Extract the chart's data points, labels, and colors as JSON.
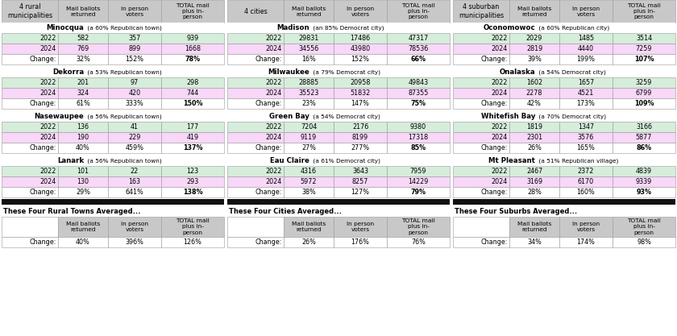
{
  "sections": [
    {
      "header": "4 rural\nmunicipalities",
      "summary_label": "These Four Rural Towns Averaged...",
      "municipalities": [
        {
          "name": "Minocqua",
          "subtitle": " (a 60% Republican town)",
          "rows": [
            {
              "label": "2022",
              "mail": "582",
              "inperson": "357",
              "total": "939",
              "type": "2022"
            },
            {
              "label": "2024",
              "mail": "769",
              "inperson": "899",
              "total": "1668",
              "type": "2024"
            },
            {
              "label": "Change:",
              "mail": "32%",
              "inperson": "152%",
              "total": "78%",
              "type": "change",
              "bold_total": true
            }
          ]
        },
        {
          "name": "Dekorra",
          "subtitle": " (a 53% Republican town)",
          "rows": [
            {
              "label": "2022",
              "mail": "201",
              "inperson": "97",
              "total": "298",
              "type": "2022"
            },
            {
              "label": "2024",
              "mail": "324",
              "inperson": "420",
              "total": "744",
              "type": "2024"
            },
            {
              "label": "Change:",
              "mail": "61%",
              "inperson": "333%",
              "total": "150%",
              "type": "change",
              "bold_total": true
            }
          ]
        },
        {
          "name": "Nasewaupee",
          "subtitle": " (a 56% Republican town)",
          "rows": [
            {
              "label": "2022",
              "mail": "136",
              "inperson": "41",
              "total": "177",
              "type": "2022"
            },
            {
              "label": "2024",
              "mail": "190",
              "inperson": "229",
              "total": "419",
              "type": "2024"
            },
            {
              "label": "Change:",
              "mail": "40%",
              "inperson": "459%",
              "total": "137%",
              "type": "change",
              "bold_total": true
            }
          ]
        },
        {
          "name": "Lanark",
          "subtitle": " (a 56% Republican town)",
          "rows": [
            {
              "label": "2022",
              "mail": "101",
              "inperson": "22",
              "total": "123",
              "type": "2022"
            },
            {
              "label": "2024",
              "mail": "130",
              "inperson": "163",
              "total": "293",
              "type": "2024"
            },
            {
              "label": "Change:",
              "mail": "29%",
              "inperson": "641%",
              "total": "138%",
              "type": "change",
              "bold_total": true
            }
          ]
        }
      ],
      "summary_row": {
        "mail": "40%",
        "inperson": "396%",
        "total": "126%"
      }
    },
    {
      "header": "4 cities",
      "summary_label": "These Four Cities Averaged...",
      "municipalities": [
        {
          "name": "Madison",
          "subtitle": " (an 85% Democrat city)",
          "rows": [
            {
              "label": "2022",
              "mail": "29831",
              "inperson": "17486",
              "total": "47317",
              "type": "2022"
            },
            {
              "label": "2024",
              "mail": "34556",
              "inperson": "43980",
              "total": "78536",
              "type": "2024"
            },
            {
              "label": "Change:",
              "mail": "16%",
              "inperson": "152%",
              "total": "66%",
              "type": "change",
              "bold_total": true
            }
          ]
        },
        {
          "name": "Milwaukee",
          "subtitle": " (a 79% Democrat city)",
          "rows": [
            {
              "label": "2022",
              "mail": "28885",
              "inperson": "20958",
              "total": "49843",
              "type": "2022"
            },
            {
              "label": "2024",
              "mail": "35523",
              "inperson": "51832",
              "total": "87355",
              "type": "2024"
            },
            {
              "label": "Change:",
              "mail": "23%",
              "inperson": "147%",
              "total": "75%",
              "type": "change",
              "bold_total": true
            }
          ]
        },
        {
          "name": "Green Bay",
          "subtitle": " (a 54% Democrat city)",
          "rows": [
            {
              "label": "2022",
              "mail": "7204",
              "inperson": "2176",
              "total": "9380",
              "type": "2022"
            },
            {
              "label": "2024",
              "mail": "9119",
              "inperson": "8199",
              "total": "17318",
              "type": "2024"
            },
            {
              "label": "Change:",
              "mail": "27%",
              "inperson": "277%",
              "total": "85%",
              "type": "change",
              "bold_total": true
            }
          ]
        },
        {
          "name": "Eau Claire",
          "subtitle": " (a 61% Democrat city)",
          "rows": [
            {
              "label": "2022",
              "mail": "4316",
              "inperson": "3643",
              "total": "7959",
              "type": "2022"
            },
            {
              "label": "2024",
              "mail": "5972",
              "inperson": "8257",
              "total": "14229",
              "type": "2024"
            },
            {
              "label": "Change:",
              "mail": "38%",
              "inperson": "127%",
              "total": "79%",
              "type": "change",
              "bold_total": true
            }
          ]
        }
      ],
      "summary_row": {
        "mail": "26%",
        "inperson": "176%",
        "total": "76%"
      }
    },
    {
      "header": "4 suburban\nmunicipalities",
      "summary_label": "These Four Suburbs Averaged...",
      "municipalities": [
        {
          "name": "Oconomowoc",
          "subtitle": " (a 60% Republican city)",
          "rows": [
            {
              "label": "2022",
              "mail": "2029",
              "inperson": "1485",
              "total": "3514",
              "type": "2022"
            },
            {
              "label": "2024",
              "mail": "2819",
              "inperson": "4440",
              "total": "7259",
              "type": "2024"
            },
            {
              "label": "Change:",
              "mail": "39%",
              "inperson": "199%",
              "total": "107%",
              "type": "change",
              "bold_total": true
            }
          ]
        },
        {
          "name": "Onalaska",
          "subtitle": " (a 54% Democrat city)",
          "rows": [
            {
              "label": "2022",
              "mail": "1602",
              "inperson": "1657",
              "total": "3259",
              "type": "2022"
            },
            {
              "label": "2024",
              "mail": "2278",
              "inperson": "4521",
              "total": "6799",
              "type": "2024"
            },
            {
              "label": "Change:",
              "mail": "42%",
              "inperson": "173%",
              "total": "109%",
              "type": "change",
              "bold_total": true
            }
          ]
        },
        {
          "name": "Whitefish Bay",
          "subtitle": " (a 70% Democrat city)",
          "rows": [
            {
              "label": "2022",
              "mail": "1819",
              "inperson": "1347",
              "total": "3166",
              "type": "2022"
            },
            {
              "label": "2024",
              "mail": "2301",
              "inperson": "3576",
              "total": "5877",
              "type": "2024"
            },
            {
              "label": "Change:",
              "mail": "26%",
              "inperson": "165%",
              "total": "86%",
              "type": "change",
              "bold_total": true
            }
          ]
        },
        {
          "name": "Mt Pleasant",
          "subtitle": " (a 51% Republican village)",
          "rows": [
            {
              "label": "2022",
              "mail": "2467",
              "inperson": "2372",
              "total": "4839",
              "type": "2022"
            },
            {
              "label": "2024",
              "mail": "3169",
              "inperson": "6170",
              "total": "9339",
              "type": "2024"
            },
            {
              "label": "Change:",
              "mail": "28%",
              "inperson": "160%",
              "total": "93%",
              "type": "change",
              "bold_total": true
            }
          ]
        }
      ],
      "summary_row": {
        "mail": "34%",
        "inperson": "174%",
        "total": "98%"
      }
    }
  ],
  "col_headers": [
    "Mail ballots\nreturned",
    "In person\nvoters",
    "TOTAL mail\nplus in-\nperson"
  ],
  "color_2022": "#d5edda",
  "color_2024": "#f8d7f8",
  "color_change": "#ffffff",
  "color_header": "#c8c8c8",
  "color_black_bar": "#111111"
}
